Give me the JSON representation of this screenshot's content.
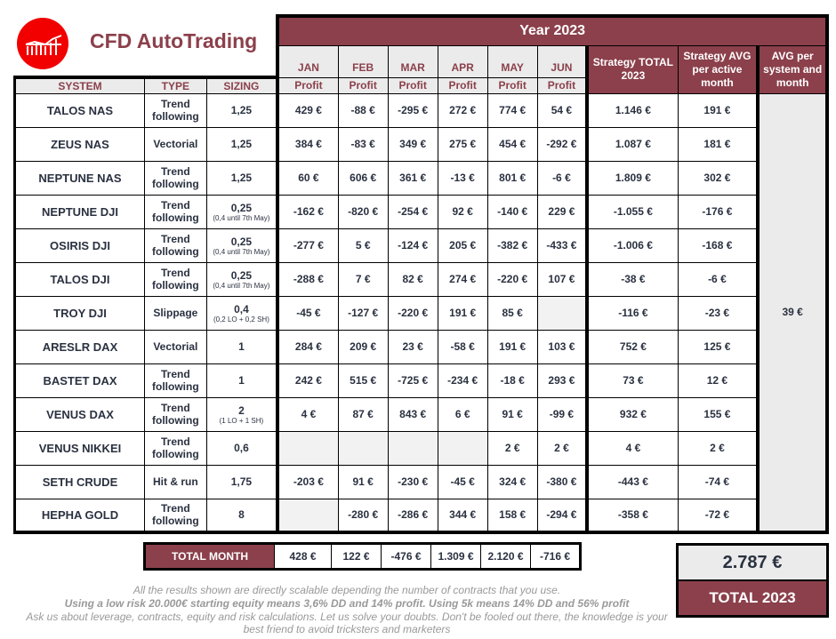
{
  "brand": "CFD AutoTrading",
  "year_label": "Year 2023",
  "columns": {
    "system": "SYSTEM",
    "type": "TYPE",
    "sizing": "SIZING",
    "profit": "Profit",
    "strategy_total": "Strategy TOTAL 2023",
    "strategy_avg": "Strategy AVG per active month",
    "avg_system": "AVG per system and month"
  },
  "months": [
    "JAN",
    "FEB",
    "MAR",
    "APR",
    "MAY",
    "JUN"
  ],
  "rows": [
    {
      "system": "TALOS NAS",
      "type": "Trend following",
      "sizing": "1,25",
      "sizing_note": "",
      "profits": [
        "429 €",
        "-88 €",
        "-295 €",
        "272 €",
        "774 €",
        "54 €"
      ],
      "total": "1.146 €",
      "avg": "191 €"
    },
    {
      "system": "ZEUS NAS",
      "type": "Vectorial",
      "sizing": "1,25",
      "sizing_note": "",
      "profits": [
        "384 €",
        "-83 €",
        "349 €",
        "275 €",
        "454 €",
        "-292 €"
      ],
      "total": "1.087 €",
      "avg": "181 €"
    },
    {
      "system": "NEPTUNE NAS",
      "type": "Trend following",
      "sizing": "1,25",
      "sizing_note": "",
      "profits": [
        "60 €",
        "606 €",
        "361 €",
        "-13 €",
        "801 €",
        "-6 €"
      ],
      "total": "1.809 €",
      "avg": "302 €"
    },
    {
      "system": "NEPTUNE DJI",
      "type": "Trend following",
      "sizing": "0,25",
      "sizing_note": "(0,4 until 7th May)",
      "profits": [
        "-162 €",
        "-820 €",
        "-254 €",
        "92 €",
        "-140 €",
        "229 €"
      ],
      "total": "-1.055 €",
      "avg": "-176 €"
    },
    {
      "system": "OSIRIS DJI",
      "type": "Trend following",
      "sizing": "0,25",
      "sizing_note": "(0,4 until 7th May)",
      "profits": [
        "-277 €",
        "5 €",
        "-124 €",
        "205 €",
        "-382 €",
        "-433 €"
      ],
      "total": "-1.006 €",
      "avg": "-168 €"
    },
    {
      "system": "TALOS DJI",
      "type": "Trend following",
      "sizing": "0,25",
      "sizing_note": "(0,4 until 7th May)",
      "profits": [
        "-288 €",
        "7 €",
        "82 €",
        "274 €",
        "-220 €",
        "107 €"
      ],
      "total": "-38 €",
      "avg": "-6 €"
    },
    {
      "system": "TROY DJI",
      "type": "Slippage",
      "sizing": "0,4",
      "sizing_note": "(0,2 LO + 0,2 SH)",
      "profits": [
        "-45 €",
        "-127 €",
        "-220 €",
        "191 €",
        "85 €",
        ""
      ],
      "total": "-116 €",
      "avg": "-23 €"
    },
    {
      "system": "ARESLR DAX",
      "type": "Vectorial",
      "sizing": "1",
      "sizing_note": "",
      "profits": [
        "284 €",
        "209 €",
        "23 €",
        "-58 €",
        "191 €",
        "103 €"
      ],
      "total": "752 €",
      "avg": "125 €"
    },
    {
      "system": "BASTET DAX",
      "type": "Trend following",
      "sizing": "1",
      "sizing_note": "",
      "profits": [
        "242 €",
        "515 €",
        "-725 €",
        "-234 €",
        "-18 €",
        "293 €"
      ],
      "total": "73 €",
      "avg": "12 €"
    },
    {
      "system": "VENUS DAX",
      "type": "Trend following",
      "sizing": "2",
      "sizing_note": "(1 LO + 1 SH)",
      "profits": [
        "4 €",
        "87 €",
        "843 €",
        "6 €",
        "91 €",
        "-99 €"
      ],
      "total": "932 €",
      "avg": "155 €"
    },
    {
      "system": "VENUS NIKKEI",
      "type": "Trend following",
      "sizing": "0,6",
      "sizing_note": "",
      "profits": [
        "",
        "",
        "",
        "",
        "2 €",
        "2 €"
      ],
      "total": "4 €",
      "avg": "2 €"
    },
    {
      "system": "SETH CRUDE",
      "type": "Hit & run",
      "sizing": "1,75",
      "sizing_note": "",
      "profits": [
        "-203 €",
        "91 €",
        "-230 €",
        "-45 €",
        "324 €",
        "-380 €"
      ],
      "total": "-443 €",
      "avg": "-74 €"
    },
    {
      "system": "HEPHA GOLD",
      "type": "Trend following",
      "sizing": "8",
      "sizing_note": "",
      "profits": [
        "",
        "-280 €",
        "-286 €",
        "344 €",
        "158 €",
        "-294 €"
      ],
      "total": "-358 €",
      "avg": "-72 €"
    }
  ],
  "avg_per_system": "39 €",
  "total_month": {
    "label": "TOTAL MONTH",
    "values": [
      "428 €",
      "122 €",
      "-476 €",
      "1.309 €",
      "2.120 €",
      "-716 €"
    ]
  },
  "total_year": {
    "value": "2.787 €",
    "label": "TOTAL 2023"
  },
  "notes": [
    "All the results shown are directly scalable depending the number of contracts that you use.",
    "Using a low risk 20.000€ starting equity means 3,6% DD and 14% profit.  Using 5k means 14% DD and 56% profit",
    "Ask us about leverage, contracts, equity and risk calculations. Let us solve your doubts.  Don't be fooled out there, the knowledge is your best friend to avoid tricksters and marketers"
  ],
  "colors": {
    "maroon": "#8b404b",
    "logo_red": "#f20000",
    "grey": "#ebebeb"
  }
}
